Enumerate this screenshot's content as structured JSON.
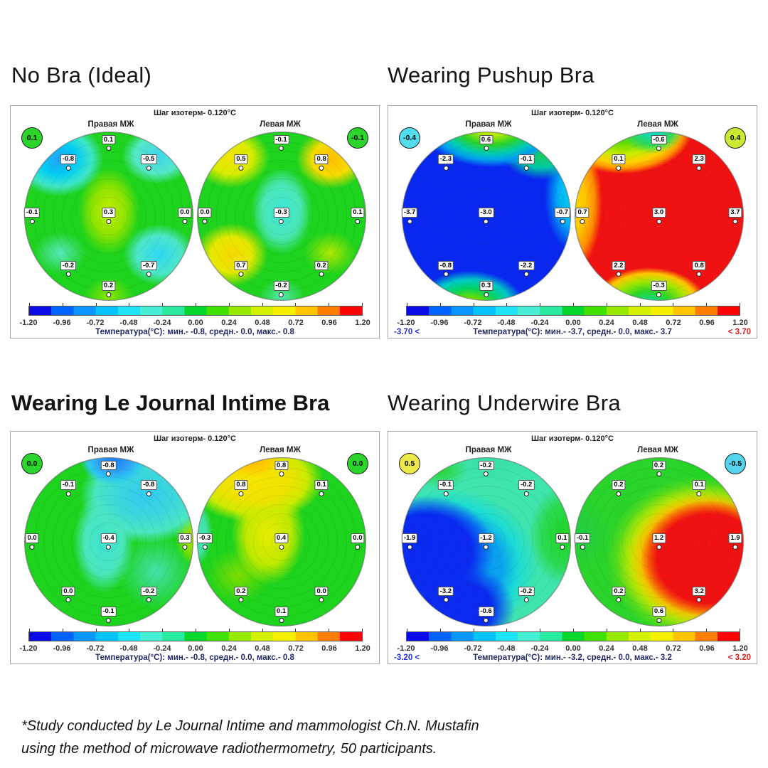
{
  "footer": {
    "line1": "*Study conducted by Le Journal Intime and mammologist Ch.N. Mustafin",
    "line2": "using the method of microwave  radiothermometry, 50 participants."
  },
  "chart_data": {
    "type": "heatmap",
    "figure": "2x2 grid of breast contour thermograms (microwave radiothermometry)",
    "isotherm_step_c": 0.12,
    "colorbar": {
      "range": [
        -1.2,
        1.2
      ],
      "ticks": [
        "-1.20",
        "-0.96",
        "-0.72",
        "-0.48",
        "-0.24",
        "0.00",
        "0.24",
        "0.48",
        "0.72",
        "0.96",
        "1.20"
      ],
      "colors": [
        "#0b0be8",
        "#0063ff",
        "#0895ff",
        "#06c3fb",
        "#1fe4f8",
        "#49efd5",
        "#2ce9a0",
        "#05d62e",
        "#41e201",
        "#97e900",
        "#d4f101",
        "#f7ef00",
        "#ffc300",
        "#ff7e00",
        "#fb0404"
      ]
    },
    "panels": [
      {
        "title": "No Bra (Ideal)",
        "title_weight": "regular",
        "isotherm_label": "Шаг изотерм- 0.120°C",
        "left_badge": {
          "value": "0.1",
          "color": "#2bd42b"
        },
        "right_badge": {
          "value": "-0.1",
          "color": "#2bd42b"
        },
        "circles": [
          {
            "label": "Правая МЖ",
            "points": {
              "top": "0.1",
              "upper_left": "-0.8",
              "upper_right": "-0.5",
              "left": "-0.1",
              "center": "0.3",
              "right": "0.0",
              "lower_left": "-0.2",
              "lower_right": "-0.7",
              "bottom": "0.2"
            }
          },
          {
            "label": "Левая МЖ",
            "points": {
              "top": "-0.1",
              "upper_left": "0.5",
              "upper_right": "0.8",
              "left": "0.0",
              "center": "-0.3",
              "right": "0.1",
              "lower_left": "0.7",
              "lower_right": "0.2",
              "bottom": "-0.2"
            }
          }
        ],
        "stats_label": "Температура(°C): мин.-  -0.8,  средн.-  0.0,  макс.-  0.8",
        "min_flag": null,
        "max_flag": null
      },
      {
        "title": "Wearing Pushup Bra",
        "title_weight": "regular",
        "isotherm_label": "Шаг изотерм- 0.120°C",
        "left_badge": {
          "value": "-0.4",
          "color": "#53dcec"
        },
        "right_badge": {
          "value": "0.4",
          "color": "#cce832"
        },
        "circles": [
          {
            "label": "Правая МЖ",
            "points": {
              "top": "0.6",
              "upper_left": "-2.3",
              "upper_right": "-0.1",
              "left": "-3.7",
              "center": "-3.0",
              "right": "-0.7",
              "lower_left": "-0.8",
              "lower_right": "-2.2",
              "bottom": "0.3"
            }
          },
          {
            "label": "Левая МЖ",
            "points": {
              "top": "-0.6",
              "upper_left": "0.1",
              "upper_right": "2.3",
              "left": "0.7",
              "center": "3.0",
              "right": "3.7",
              "lower_left": "2.2",
              "lower_right": "0.8",
              "bottom": "-0.3"
            }
          }
        ],
        "stats_label": "Температура(°C): мин.-  -3.7,  средн.-  0.0,  макс.-  3.7",
        "min_flag": {
          "text": "-3.70 <",
          "color": "#2233cc"
        },
        "max_flag": {
          "text": "< 3.70",
          "color": "#cc2222"
        }
      },
      {
        "title": "Wearing Le Journal Intime Bra",
        "title_weight": "bold",
        "isotherm_label": "Шаг изотерм- 0.120°C",
        "left_badge": {
          "value": "0.0",
          "color": "#2bd42b"
        },
        "right_badge": {
          "value": "0.0",
          "color": "#2bd42b"
        },
        "circles": [
          {
            "label": "Правая МЖ",
            "points": {
              "top": "-0.8",
              "upper_left": "-0.1",
              "upper_right": "-0.8",
              "left": "0.0",
              "center": "-0.4",
              "right": "0.3",
              "lower_left": "0.0",
              "lower_right": "-0.2",
              "bottom": "-0.1"
            }
          },
          {
            "label": "Левая МЖ",
            "points": {
              "top": "0.8",
              "upper_left": "0.8",
              "upper_right": "0.1",
              "left": "-0.3",
              "center": "0.4",
              "right": "0.0",
              "lower_left": "0.2",
              "lower_right": "0.0",
              "bottom": "0.1"
            }
          }
        ],
        "stats_label": "Температура(°C): мин.-  -0.8,  средн.-  0.0,  макс.-  0.8",
        "min_flag": null,
        "max_flag": null
      },
      {
        "title": "Wearing Underwire Bra",
        "title_weight": "regular",
        "isotherm_label": "Шаг изотерм- 0.120°C",
        "left_badge": {
          "value": "0.5",
          "color": "#ece84a"
        },
        "right_badge": {
          "value": "-0.5",
          "color": "#53d4ec"
        },
        "circles": [
          {
            "label": "Правая МЖ",
            "points": {
              "top": "-0.2",
              "upper_left": "-0.1",
              "upper_right": "-0.2",
              "left": "-1.9",
              "center": "-1.2",
              "right": "0.1",
              "lower_left": "-3.2",
              "lower_right": "-0.2",
              "bottom": "-0.6"
            }
          },
          {
            "label": "Левая МЖ",
            "points": {
              "top": "0.2",
              "upper_left": "0.2",
              "upper_right": "0.1",
              "left": "-0.1",
              "center": "1.2",
              "right": "1.9",
              "lower_left": "0.2",
              "lower_right": "3.2",
              "bottom": "0.6"
            }
          }
        ],
        "stats_label": "Температура(°C): мин.-  -3.2,  средн.-  0.0,  макс.-  3.2",
        "min_flag": {
          "text": "-3.20 <",
          "color": "#2233cc"
        },
        "max_flag": {
          "text": "< 3.20",
          "color": "#cc2222"
        }
      }
    ]
  }
}
